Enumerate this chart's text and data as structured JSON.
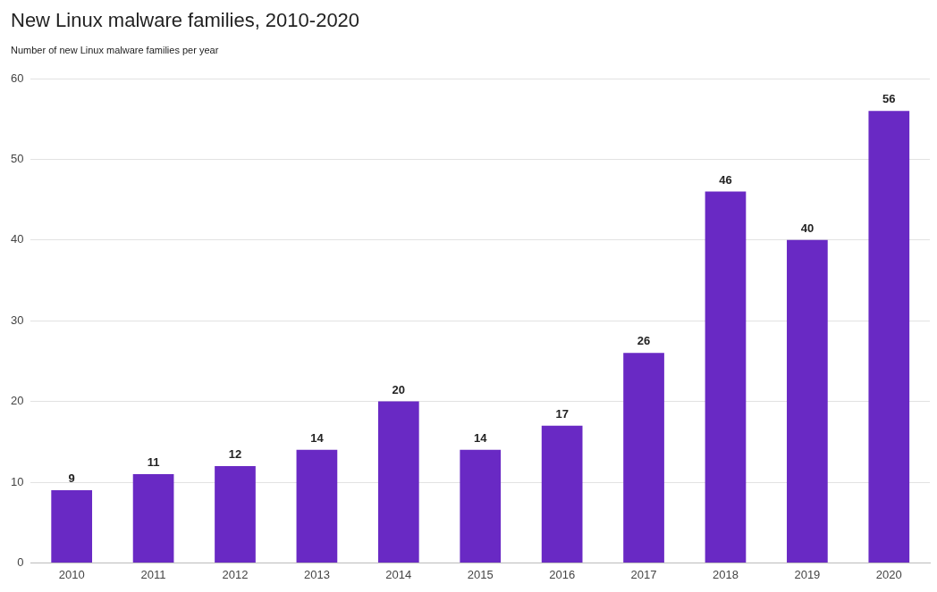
{
  "chart_data": {
    "type": "bar",
    "title": "New Linux malware families, 2010-2020",
    "subtitle": "Number of new Linux malware families per year",
    "categories": [
      "2010",
      "2011",
      "2012",
      "2013",
      "2014",
      "2015",
      "2016",
      "2017",
      "2018",
      "2019",
      "2020"
    ],
    "values": [
      9,
      11,
      12,
      14,
      20,
      14,
      17,
      26,
      46,
      40,
      56
    ],
    "color": "#6929c4",
    "ylim": [
      0,
      60
    ],
    "yticks": [
      0,
      10,
      20,
      30,
      40,
      50,
      60
    ],
    "grid": "y",
    "data_labels": true,
    "legend": false
  }
}
